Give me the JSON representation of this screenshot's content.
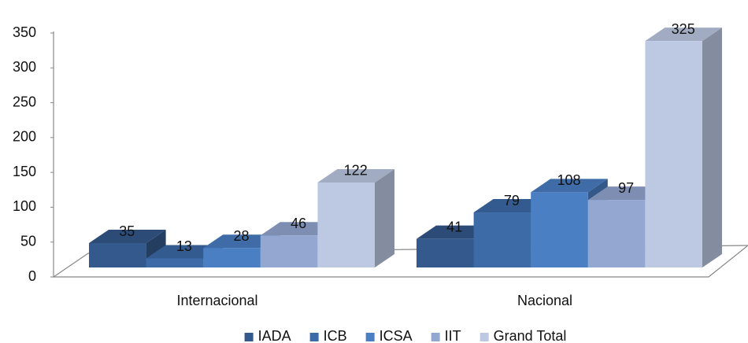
{
  "chart_data": {
    "type": "bar3d",
    "categories": [
      "Internacional",
      "Nacional"
    ],
    "series": [
      {
        "name": "IADA",
        "color": "#34598c",
        "values": [
          35,
          41
        ]
      },
      {
        "name": "ICB",
        "color": "#3d6ba8",
        "values": [
          13,
          79
        ]
      },
      {
        "name": "ICSA",
        "color": "#4a7fc4",
        "values": [
          28,
          108
        ]
      },
      {
        "name": "IIT",
        "color": "#93a7d1",
        "values": [
          46,
          97
        ]
      },
      {
        "name": "Grand Total",
        "color": "#bdc9e3",
        "values": [
          122,
          325
        ]
      }
    ],
    "ylim": [
      0,
      350
    ],
    "yticks": [
      0,
      50,
      100,
      150,
      200,
      250,
      300,
      350
    ],
    "legend": "bottom"
  }
}
